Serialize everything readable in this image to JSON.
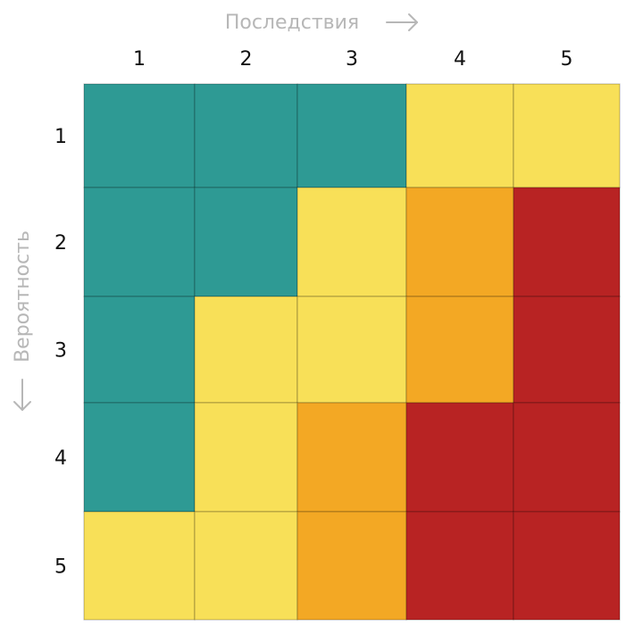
{
  "chart_data": {
    "type": "heatmap",
    "xlabel": "Последствия",
    "ylabel": "Вероятность",
    "x_categories": [
      "1",
      "2",
      "3",
      "4",
      "5"
    ],
    "y_categories": [
      "1",
      "2",
      "3",
      "4",
      "5"
    ],
    "levels": [
      [
        0,
        0,
        0,
        1,
        1
      ],
      [
        0,
        0,
        1,
        2,
        3
      ],
      [
        0,
        1,
        1,
        2,
        3
      ],
      [
        0,
        1,
        2,
        3,
        3
      ],
      [
        1,
        1,
        2,
        3,
        3
      ]
    ],
    "level_colors": [
      "#2e9a94",
      "#f8e058",
      "#f3a824",
      "#b82323"
    ],
    "grid": true
  }
}
